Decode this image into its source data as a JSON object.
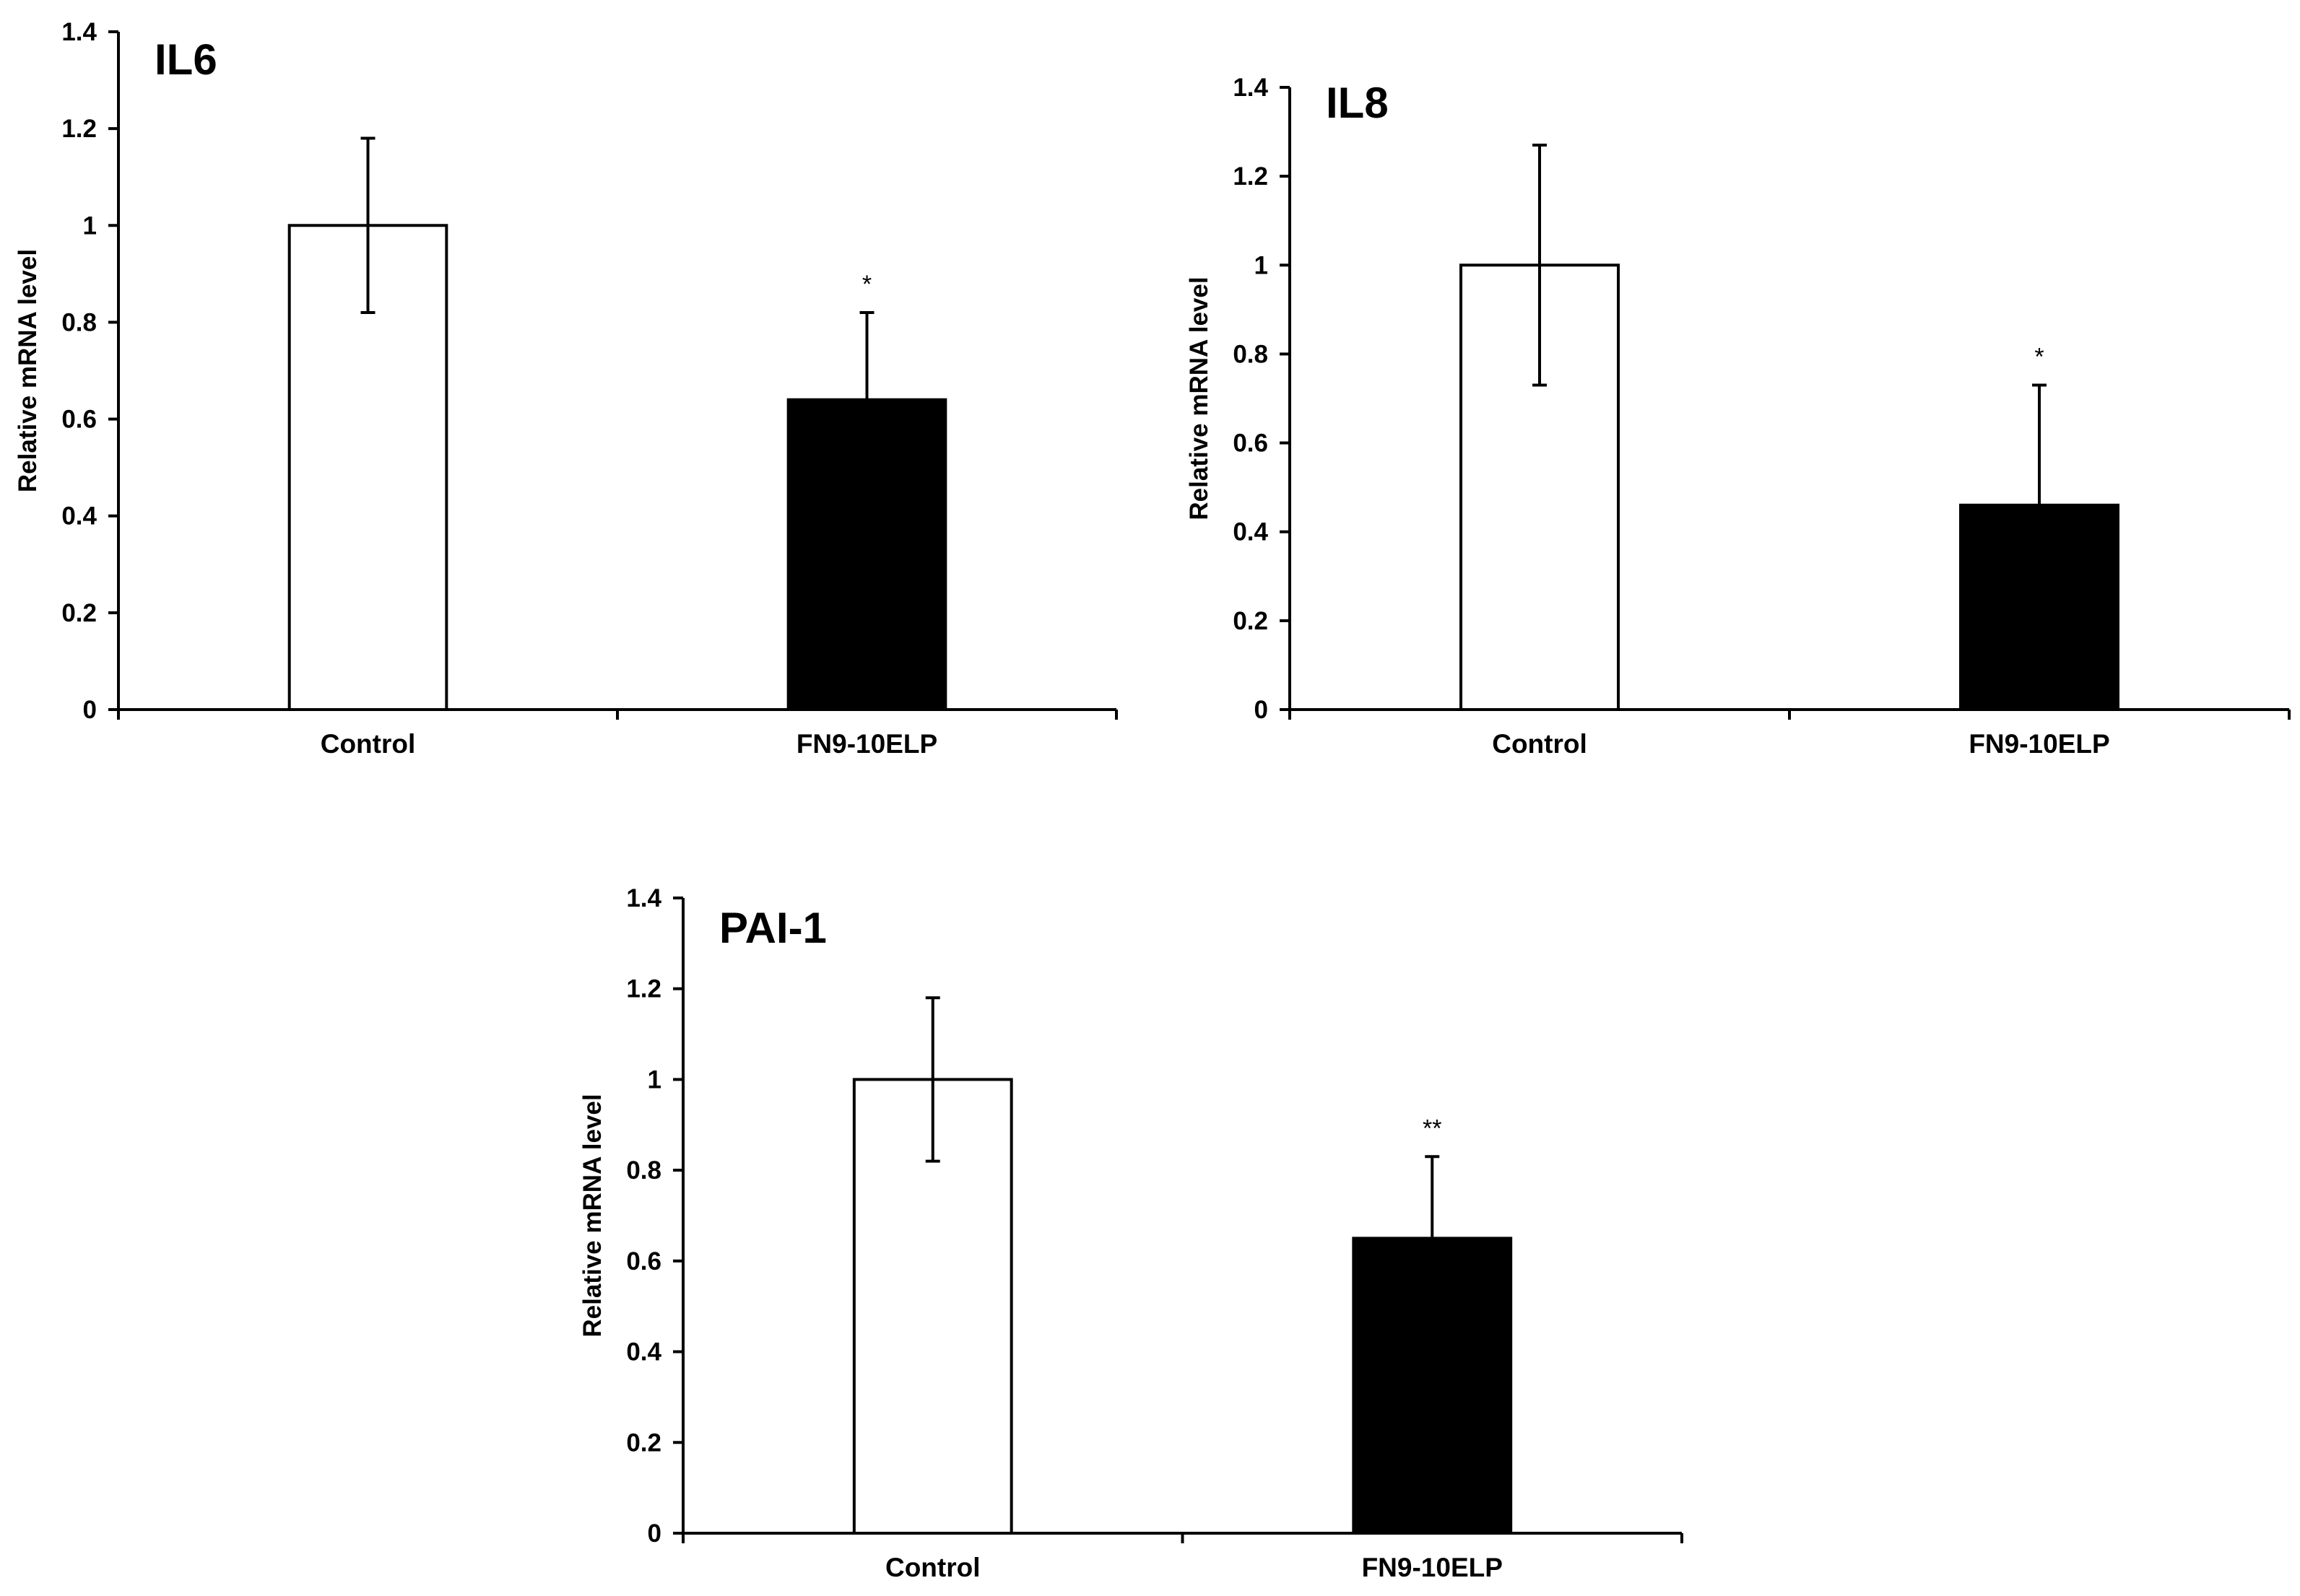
{
  "chart_data": [
    {
      "type": "bar",
      "title": "IL6",
      "xlabel": "",
      "ylabel": "Relative mRNA level",
      "ylim": [
        0,
        1.4
      ],
      "yticks": [
        "0",
        "0.2",
        "0.4",
        "0.6",
        "0.8",
        "1",
        "1.2",
        "1.4"
      ],
      "grid": false,
      "categories": [
        "Control",
        "FN9-10ELP"
      ],
      "values": [
        1.0,
        0.64
      ],
      "errors": [
        0.18,
        0.18
      ],
      "significance": [
        "",
        "*"
      ],
      "colors": [
        "#ffffff",
        "#000000"
      ]
    },
    {
      "type": "bar",
      "title": "IL8",
      "xlabel": "",
      "ylabel": "Relative mRNA level",
      "ylim": [
        0,
        1.4
      ],
      "yticks": [
        "0",
        "0.2",
        "0.4",
        "0.6",
        "0.8",
        "1",
        "1.2",
        "1.4"
      ],
      "grid": false,
      "categories": [
        "Control",
        "FN9-10ELP"
      ],
      "values": [
        1.0,
        0.46
      ],
      "errors": [
        0.27,
        0.27
      ],
      "significance": [
        "",
        "*"
      ],
      "colors": [
        "#ffffff",
        "#000000"
      ]
    },
    {
      "type": "bar",
      "title": "PAI-1",
      "xlabel": "",
      "ylabel": "Relative mRNA level",
      "ylim": [
        0,
        1.4
      ],
      "yticks": [
        "0",
        "0.2",
        "0.4",
        "0.6",
        "0.8",
        "1",
        "1.2",
        "1.4"
      ],
      "grid": false,
      "categories": [
        "Control",
        "FN9-10ELP"
      ],
      "values": [
        1.0,
        0.65
      ],
      "errors": [
        0.18,
        0.18
      ],
      "significance": [
        "",
        "**"
      ],
      "colors": [
        "#ffffff",
        "#000000"
      ]
    }
  ]
}
